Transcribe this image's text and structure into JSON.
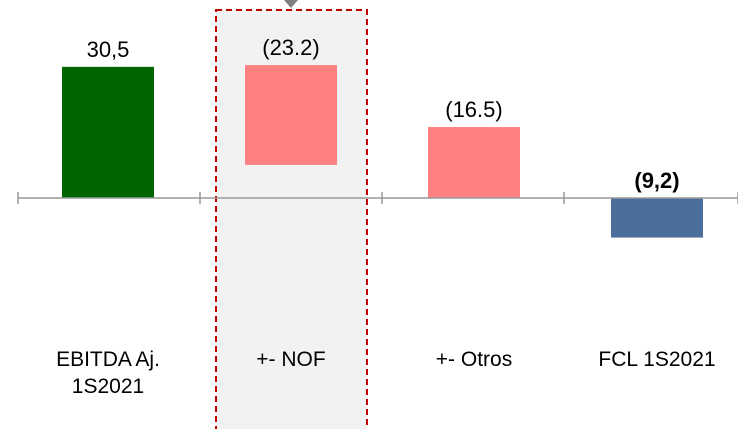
{
  "chart_data": {
    "type": "bar",
    "subtype": "waterfall",
    "categories": [
      "EBITDA Aj.\n1S2021",
      "+- NOF",
      "+- Otros",
      "FCL 1S2021"
    ],
    "series": [
      {
        "values": [
          30.5,
          -23.2,
          -16.5,
          -9.2
        ],
        "labels": [
          "30,5",
          "(23.2)",
          "(16.5)",
          "(9,2)"
        ],
        "label_bold": [
          false,
          false,
          false,
          true
        ],
        "colors": [
          "#006400",
          "#FF8080",
          "#FF8080",
          "#4A6F9A"
        ],
        "kind": [
          "total",
          "delta",
          "delta",
          "total"
        ]
      }
    ],
    "highlighted_category": "+- NOF",
    "ylim": [
      -30,
      35
    ],
    "grid": false,
    "legend": "none",
    "colors": {
      "baseline": "#999999",
      "highlight_fill": "#F2F2F2",
      "highlight_border": "#C00000",
      "arrow": "#7F7F7F"
    }
  }
}
